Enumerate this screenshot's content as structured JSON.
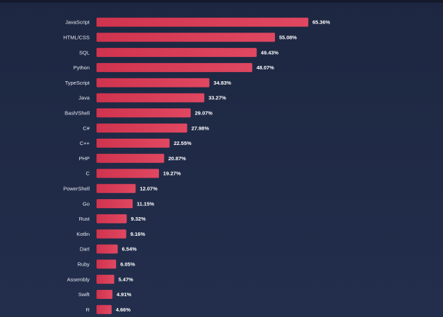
{
  "chart_data": {
    "type": "bar",
    "orientation": "horizontal",
    "title": "",
    "xlabel": "",
    "ylabel": "",
    "xlim": [
      0,
      65.36
    ],
    "grid": false,
    "bar_color": "#d0334d",
    "bar_color_light": "#e04761",
    "background_color": "#1f2a44",
    "categories": [
      "JavaScript",
      "HTML/CSS",
      "SQL",
      "Python",
      "TypeScript",
      "Java",
      "Bash/Shell",
      "C#",
      "C++",
      "PHP",
      "C",
      "PowerShell",
      "Go",
      "Rust",
      "Kotlin",
      "Dart",
      "Ruby",
      "Assembly",
      "Swift",
      "R"
    ],
    "values": [
      65.36,
      55.08,
      49.43,
      48.07,
      34.83,
      33.27,
      29.07,
      27.98,
      22.55,
      20.87,
      19.27,
      12.07,
      11.15,
      9.32,
      9.16,
      6.54,
      6.05,
      5.47,
      4.91,
      4.66
    ],
    "value_labels": [
      "65.36%",
      "55.08%",
      "49.43%",
      "48.07%",
      "34.83%",
      "33.27%",
      "29.07%",
      "27.98%",
      "22.55%",
      "20.87%",
      "19.27%",
      "12.07%",
      "11.15%",
      "9.32%",
      "9.16%",
      "6.54%",
      "6.05%",
      "5.47%",
      "4.91%",
      "4.66%"
    ]
  }
}
